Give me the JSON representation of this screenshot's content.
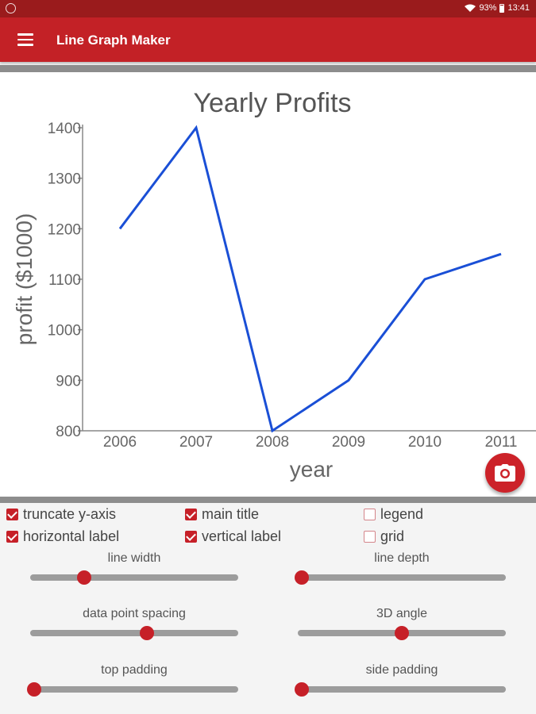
{
  "status_bar": {
    "battery_text": "93%",
    "time": "13:41"
  },
  "app_bar": {
    "title": "Line Graph Maker",
    "menu_icon": "hamburger-menu-icon"
  },
  "chart_data": {
    "type": "line",
    "title": "Yearly Profits",
    "xlabel": "year",
    "ylabel": "profit ($1000)",
    "categories": [
      "2006",
      "2007",
      "2008",
      "2009",
      "2010",
      "2011"
    ],
    "series": [
      {
        "values": [
          1200,
          1400,
          800,
          900,
          1100,
          1150
        ],
        "color": "#1a4fd6"
      }
    ],
    "yticks": [
      "800",
      "900",
      "1000",
      "1100",
      "1200",
      "1300",
      "1400"
    ],
    "ylim": [
      800,
      1400
    ],
    "grid": false,
    "legend": false
  },
  "fab": {
    "icon": "camera-icon"
  },
  "options": {
    "checkboxes": [
      {
        "label": "truncate y-axis",
        "checked": true
      },
      {
        "label": "main title",
        "checked": true
      },
      {
        "label": "legend",
        "checked": false
      },
      {
        "label": "horizontal label",
        "checked": true
      },
      {
        "label": "vertical label",
        "checked": true
      },
      {
        "label": "grid",
        "checked": false
      }
    ],
    "sliders": [
      {
        "label": "line width",
        "value": 0.26
      },
      {
        "label": "line depth",
        "value": 0.0
      },
      {
        "label": "data point spacing",
        "value": 0.56
      },
      {
        "label": "3D angle",
        "value": 0.5
      },
      {
        "label": "top padding",
        "value": 0.0
      },
      {
        "label": "side padding",
        "value": 0.0
      }
    ]
  },
  "colors": {
    "status_bar": "#9a1b1c",
    "app_bar": "#c32126",
    "accent": "#c62028",
    "line": "#1a4fd6"
  }
}
